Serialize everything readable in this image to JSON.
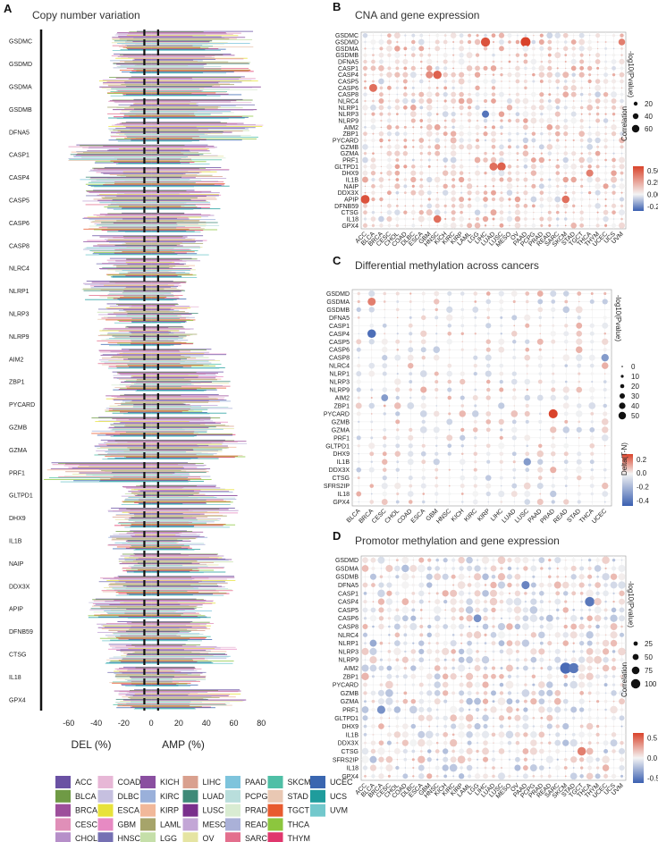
{
  "panels": {
    "A": {
      "label": "A",
      "title": "Copy number variation",
      "xlabel_del": "DEL (%)",
      "xlabel_amp": "AMP (%)"
    },
    "B": {
      "label": "B",
      "title": "CNA and gene expression",
      "size_title": "-log10(Pvalue)",
      "color_title": "Correlation"
    },
    "C": {
      "label": "C",
      "title": "Differential methylation across cancers",
      "size_title": "-log10(Pvalue)",
      "color_title": "Delta(T-N)"
    },
    "D": {
      "label": "D",
      "title": "Promotor methylation and gene expression",
      "size_title": "-log10(Pvalue)",
      "color_title": "Correlation"
    }
  },
  "chart_data": [
    {
      "id": "A",
      "type": "bar",
      "orientation": "horizontal",
      "title": "Copy number variation",
      "xlabel": "DEL (%) / AMP (%)",
      "xlim": [
        -80,
        85
      ],
      "xticks": [
        "-60",
        "-40",
        "-20",
        "0",
        "20",
        "40",
        "60",
        "80"
      ],
      "xtick_values": [
        -60,
        -40,
        -20,
        0,
        20,
        40,
        60,
        80
      ],
      "reference_lines": [
        -5,
        5
      ],
      "categories": [
        "GSDMC",
        "GSDMD",
        "GSDMA",
        "GSDMB",
        "DFNA5",
        "CASP1",
        "CASP4",
        "CASP5",
        "CASP6",
        "CASP8",
        "NLRC4",
        "NLRP1",
        "NLRP3",
        "NLRP9",
        "AIM2",
        "ZBP1",
        "PYCARD",
        "GZMB",
        "GZMA",
        "PRF1",
        "GLTPD1",
        "DHX9",
        "IL1B",
        "NAIP",
        "DDX3X",
        "APIP",
        "DFNB59",
        "CTSG",
        "IL18",
        "GPX4"
      ],
      "del_peak": [
        30,
        30,
        38,
        32,
        32,
        62,
        52,
        52,
        50,
        50,
        40,
        52,
        40,
        40,
        40,
        30,
        34,
        44,
        44,
        78,
        22,
        32,
        32,
        24,
        40,
        46,
        40,
        34,
        32,
        28
      ],
      "amp_peak": [
        78,
        76,
        80,
        78,
        82,
        56,
        58,
        56,
        50,
        42,
        36,
        26,
        36,
        34,
        56,
        58,
        60,
        64,
        70,
        44,
        64,
        64,
        42,
        60,
        62,
        48,
        46,
        64,
        42,
        70
      ]
    },
    {
      "id": "B",
      "type": "scatter",
      "title": "CNA and gene expression",
      "genes": [
        "GSDMC",
        "GSDMD",
        "GSDMA",
        "GSDMB",
        "DFNA5",
        "CASP1",
        "CASP4",
        "CASP5",
        "CASP6",
        "CASP8",
        "NLRC4",
        "NLRP1",
        "NLRP3",
        "NLRP9",
        "AIM2",
        "ZBP1",
        "PYCARD",
        "GZMB",
        "GZMA",
        "PRF1",
        "GLTPD1",
        "DHX9",
        "IL1B",
        "NAIP",
        "DDX3X",
        "APIP",
        "DFNB59",
        "CTSG",
        "IL18",
        "GPX4"
      ],
      "cancers": [
        "ACC",
        "BLCA",
        "BRCA",
        "CESC",
        "CHOL",
        "COAD",
        "DLBC",
        "ESCA",
        "GBM",
        "HNSC",
        "KICH",
        "KIRC",
        "KIRP",
        "LAML",
        "LGG",
        "LIHC",
        "LUAD",
        "LUSC",
        "MESO",
        "OV",
        "PAAD",
        "PCPG",
        "PRAD",
        "READ",
        "SARC",
        "SKCM",
        "STAD",
        "TGCT",
        "THCA",
        "THYM",
        "UCEC",
        "UCS",
        "UVM"
      ],
      "size_legend": [
        "20",
        "40",
        "60"
      ],
      "color_ticks": [
        "0.50",
        "0.25",
        "0.00",
        "-0.25"
      ],
      "color_range": [
        -0.35,
        0.6
      ],
      "highlights": [
        [
          "GSDMD",
          "LIHC",
          0.55,
          60
        ],
        [
          "GSDMD",
          "PAAD",
          0.6,
          70
        ],
        [
          "GSDMD",
          "UVM",
          0.4,
          30
        ],
        [
          "CASP4",
          "HNSC",
          0.5,
          50
        ],
        [
          "CASP4",
          "GBM",
          0.35,
          35
        ],
        [
          "CASP6",
          "BLCA",
          0.45,
          45
        ],
        [
          "GLTPD1",
          "LUAD",
          0.45,
          45
        ],
        [
          "GLTPD1",
          "LUSC",
          0.5,
          50
        ],
        [
          "APIP",
          "ACC",
          0.55,
          55
        ],
        [
          "APIP",
          "SKCM",
          0.45,
          40
        ],
        [
          "IL18",
          "HNSC",
          0.45,
          40
        ],
        [
          "NLRP3",
          "LIHC",
          -0.3,
          35
        ],
        [
          "DHX9",
          "THCA",
          0.4,
          35
        ]
      ]
    },
    {
      "id": "C",
      "type": "scatter",
      "title": "Differential methylation across cancers",
      "genes": [
        "GSDMD",
        "GSDMA",
        "GSDMB",
        "DFNA5",
        "CASP1",
        "CASP4",
        "CASP5",
        "CASP6",
        "CASP8",
        "NLRC4",
        "NLRP1",
        "NLRP3",
        "NLRP9",
        "AIM2",
        "ZBP1",
        "PYCARD",
        "GZMB",
        "GZMA",
        "PRF1",
        "GLTPD1",
        "DHX9",
        "IL1B",
        "DDX3X",
        "CTSG",
        "SFRS2IP",
        "IL18",
        "GPX4"
      ],
      "cancers": [
        "BLCA",
        "BRCA",
        "CESC",
        "CHOL",
        "COAD",
        "ESCA",
        "GBM",
        "HNSC",
        "KICH",
        "KIRC",
        "KIRP",
        "LIHC",
        "LUAD",
        "LUSC",
        "PAAD",
        "PRAD",
        "READ",
        "STAD",
        "THCA",
        "UCEC"
      ],
      "size_legend": [
        "0",
        "10",
        "20",
        "30",
        "40",
        "50"
      ],
      "color_ticks": [
        "0.2",
        "0.0",
        "-0.2",
        "-0.4"
      ],
      "color_range": [
        -0.5,
        0.3
      ],
      "highlights": [
        [
          "CASP4",
          "BRCA",
          -0.45,
          40
        ],
        [
          "PYCARD",
          "PRAD",
          0.3,
          45
        ],
        [
          "IL1B",
          "LUSC",
          -0.3,
          30
        ],
        [
          "GSDMA",
          "BRCA",
          0.2,
          35
        ],
        [
          "AIM2",
          "CESC",
          -0.3,
          25
        ],
        [
          "CASP8",
          "UCEC",
          -0.3,
          30
        ]
      ]
    },
    {
      "id": "D",
      "type": "scatter",
      "title": "Promotor methylation and gene expression",
      "genes": [
        "GSDMD",
        "GSDMA",
        "GSDMB",
        "DFNA5",
        "CASP1",
        "CASP4",
        "CASP5",
        "CASP6",
        "CASP8",
        "NLRC4",
        "NLRP1",
        "NLRP3",
        "NLRP9",
        "AIM2",
        "ZBP1",
        "PYCARD",
        "GZMB",
        "GZMA",
        "PRF1",
        "GLTPD1",
        "DHX9",
        "IL1B",
        "DDX3X",
        "CTSG",
        "SFRS2IP",
        "IL18",
        "GPX4"
      ],
      "cancers": [
        "ACC",
        "BLCA",
        "BRCA",
        "CESC",
        "CHOL",
        "COAD",
        "DLBC",
        "ESCA",
        "GBM",
        "HNSC",
        "KICH",
        "KIRC",
        "KIRP",
        "LAML",
        "LGG",
        "LIHC",
        "LUAD",
        "LUSC",
        "MESO",
        "OV",
        "PAAD",
        "PCPG",
        "PRAD",
        "READ",
        "SARC",
        "SKCM",
        "STAD",
        "TGCT",
        "THCA",
        "THYM",
        "UCEC",
        "UCS",
        "UVM"
      ],
      "size_legend": [
        "25",
        "50",
        "75",
        "100"
      ],
      "color_ticks": [
        "0.5",
        "0.0",
        "-0.5"
      ],
      "color_range": [
        -0.6,
        0.6
      ],
      "highlights": [
        [
          "AIM2",
          "SKCM",
          -0.55,
          100
        ],
        [
          "AIM2",
          "STAD",
          -0.5,
          80
        ],
        [
          "CASP4",
          "THCA",
          -0.5,
          70
        ],
        [
          "DFNA5",
          "PAAD",
          -0.45,
          50
        ],
        [
          "PRF1",
          "BRCA",
          -0.4,
          50
        ],
        [
          "CTSG",
          "TGCT",
          0.4,
          55
        ],
        [
          "CASP6",
          "LGG",
          -0.4,
          45
        ],
        [
          "NLRP1",
          "BLCA",
          -0.3,
          35
        ]
      ]
    }
  ],
  "legend": {
    "items": [
      {
        "name": "ACC",
        "color": "#6a51a3"
      },
      {
        "name": "BLCA",
        "color": "#6f9a45"
      },
      {
        "name": "BRCA",
        "color": "#9d4f9b"
      },
      {
        "name": "CESC",
        "color": "#e08fb8"
      },
      {
        "name": "CHOL",
        "color": "#b68fc9"
      },
      {
        "name": "COAD",
        "color": "#e7b7d6"
      },
      {
        "name": "DLBC",
        "color": "#c6c0e0"
      },
      {
        "name": "ESCA",
        "color": "#e8e23a"
      },
      {
        "name": "GBM",
        "color": "#e78ac3"
      },
      {
        "name": "HNSC",
        "color": "#7570b3"
      },
      {
        "name": "KICH",
        "color": "#8a4fa0"
      },
      {
        "name": "KIRC",
        "color": "#9ab0da"
      },
      {
        "name": "KIRP",
        "color": "#f1b89a"
      },
      {
        "name": "LAML",
        "color": "#a6a46a"
      },
      {
        "name": "LGG",
        "color": "#c5dfa9"
      },
      {
        "name": "LIHC",
        "color": "#d9a08e"
      },
      {
        "name": "LUAD",
        "color": "#3f8a78"
      },
      {
        "name": "LUSC",
        "color": "#7a2f8c"
      },
      {
        "name": "MESO",
        "color": "#c3a6d6"
      },
      {
        "name": "OV",
        "color": "#e5e4a2"
      },
      {
        "name": "PAAD",
        "color": "#7ec4dc"
      },
      {
        "name": "PCPG",
        "color": "#b9dedc"
      },
      {
        "name": "PRAD",
        "color": "#d9ecd2"
      },
      {
        "name": "READ",
        "color": "#aab1d8"
      },
      {
        "name": "SARC",
        "color": "#e36f8d"
      },
      {
        "name": "SKCM",
        "color": "#4fbfa6"
      },
      {
        "name": "STAD",
        "color": "#e9c8b3"
      },
      {
        "name": "TGCT",
        "color": "#e85b2f"
      },
      {
        "name": "THCA",
        "color": "#8cc63e"
      },
      {
        "name": "THYM",
        "color": "#e0376d"
      },
      {
        "name": "UCEC",
        "color": "#3a66b0"
      },
      {
        "name": "UCS",
        "color": "#1f9c9c"
      },
      {
        "name": "UVM",
        "color": "#72c8cc"
      }
    ]
  }
}
